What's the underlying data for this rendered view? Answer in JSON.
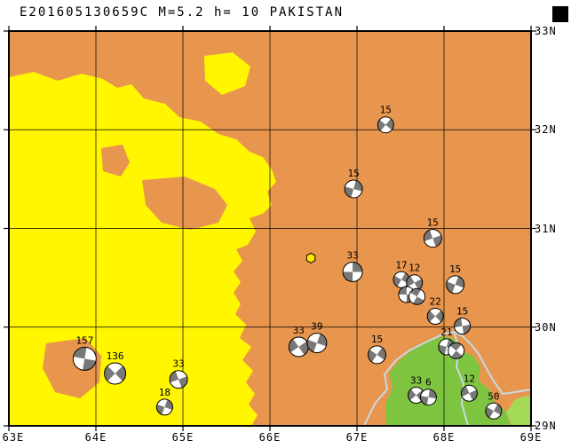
{
  "title": "E201605130659C M=5.2 h= 10 PAKISTAN",
  "map": {
    "bounds": {
      "lon_min": 63,
      "lon_max": 69,
      "lat_min": 29,
      "lat_max": 33
    },
    "x_ticks": [
      "63E",
      "64E",
      "65E",
      "66E",
      "67E",
      "68E",
      "69E"
    ],
    "y_ticks": [
      "33N",
      "32N",
      "31N",
      "30N",
      "29N"
    ],
    "colors": {
      "land_high": "#E8954E",
      "land_mid": "#FFF600",
      "land_low": "#7FC440",
      "land_low_light": "#A4D954",
      "border_line": "#C6DBE5",
      "ball_fill": "#787878",
      "station_fill": "#FFE800"
    },
    "symbols": {
      "focal_mechanism": "beachball-quadrant-circle",
      "station": "yellow-hexagon"
    },
    "station": {
      "lon": 66.47,
      "lat": 30.7
    },
    "events": [
      {
        "depth": "15",
        "lon": 67.33,
        "lat": 32.05,
        "r": 9,
        "rot": 40
      },
      {
        "depth": "15",
        "lon": 66.96,
        "lat": 31.4,
        "r": 10,
        "rot": 15
      },
      {
        "depth": "15",
        "lon": 67.87,
        "lat": 30.9,
        "r": 10,
        "rot": 70
      },
      {
        "depth": "33",
        "lon": 66.95,
        "lat": 30.56,
        "r": 11,
        "rot": 0
      },
      {
        "depth": "17",
        "lon": 67.51,
        "lat": 30.48,
        "r": 9,
        "rot": 30
      },
      {
        "depth": "12",
        "lon": 67.66,
        "lat": 30.45,
        "r": 9,
        "rot": 60
      },
      {
        "depth": "",
        "lon": 67.57,
        "lat": 30.33,
        "r": 9,
        "rot": 90
      },
      {
        "depth": "",
        "lon": 67.69,
        "lat": 30.31,
        "r": 9,
        "rot": 120
      },
      {
        "depth": "15",
        "lon": 68.13,
        "lat": 30.43,
        "r": 10,
        "rot": 20
      },
      {
        "depth": "22",
        "lon": 67.9,
        "lat": 30.11,
        "r": 9,
        "rot": 45
      },
      {
        "depth": "15",
        "lon": 68.21,
        "lat": 30.01,
        "r": 9,
        "rot": 80
      },
      {
        "depth": "21",
        "lon": 68.03,
        "lat": 29.8,
        "r": 9,
        "rot": 15
      },
      {
        "depth": "",
        "lon": 68.14,
        "lat": 29.76,
        "r": 9,
        "rot": 130
      },
      {
        "depth": "33",
        "lon": 66.33,
        "lat": 29.8,
        "r": 11,
        "rot": 55
      },
      {
        "depth": "39",
        "lon": 66.54,
        "lat": 29.84,
        "r": 11,
        "rot": 20
      },
      {
        "depth": "15",
        "lon": 67.23,
        "lat": 29.72,
        "r": 10,
        "rot": 35
      },
      {
        "depth": "157",
        "lon": 63.87,
        "lat": 29.68,
        "r": 13,
        "rot": 100
      },
      {
        "depth": "136",
        "lon": 64.22,
        "lat": 29.53,
        "r": 12,
        "rot": 45
      },
      {
        "depth": "33",
        "lon": 64.95,
        "lat": 29.47,
        "r": 10,
        "rot": 70
      },
      {
        "depth": "18",
        "lon": 64.79,
        "lat": 29.19,
        "r": 9,
        "rot": 20
      },
      {
        "depth": "33",
        "lon": 67.68,
        "lat": 29.31,
        "r": 9,
        "rot": 50
      },
      {
        "depth": "6",
        "lon": 67.82,
        "lat": 29.29,
        "r": 9,
        "rot": 10
      },
      {
        "depth": "12",
        "lon": 68.29,
        "lat": 29.33,
        "r": 9,
        "rot": 65
      },
      {
        "depth": "50",
        "lon": 68.57,
        "lat": 29.15,
        "r": 9,
        "rot": 30
      }
    ]
  }
}
